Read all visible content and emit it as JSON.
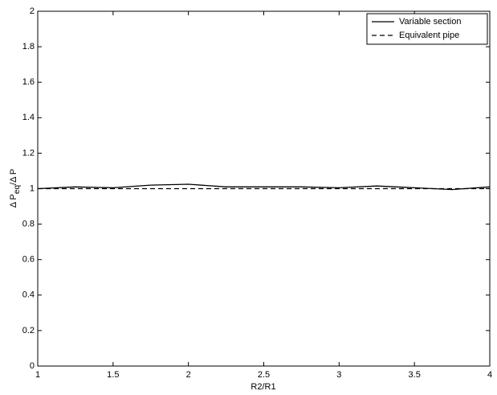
{
  "chart_data": {
    "type": "line",
    "xlabel": "R2/R1",
    "ylabel": [
      "Δ P",
      "eq",
      "/Δ P"
    ],
    "x": [
      1,
      1.25,
      1.5,
      1.75,
      2,
      2.25,
      2.5,
      2.75,
      3,
      3.25,
      3.5,
      3.75,
      4
    ],
    "series": [
      {
        "name": "Variable section",
        "color": "#000000",
        "linestyle": "solid",
        "values": [
          1,
          1.01,
          1.005,
          1.02,
          1.025,
          1.01,
          1.01,
          1.01,
          1.005,
          1.015,
          1.005,
          0.995,
          1.01
        ]
      },
      {
        "name": "Equivalent pipe",
        "color": "#000000",
        "linestyle": "dashed",
        "values": [
          1,
          1,
          1,
          1,
          1,
          1,
          1,
          1,
          1,
          1,
          1,
          1,
          1
        ]
      }
    ],
    "xlim": [
      1,
      4
    ],
    "xticks": [
      1,
      1.5,
      2,
      2.5,
      3,
      3.5,
      4
    ],
    "ylim": [
      0,
      2
    ],
    "yticks": [
      0,
      0.2,
      0.4,
      0.6,
      0.8,
      1,
      1.2,
      1.4,
      1.6,
      1.8,
      2
    ],
    "grid": false,
    "legend": "top-right"
  }
}
